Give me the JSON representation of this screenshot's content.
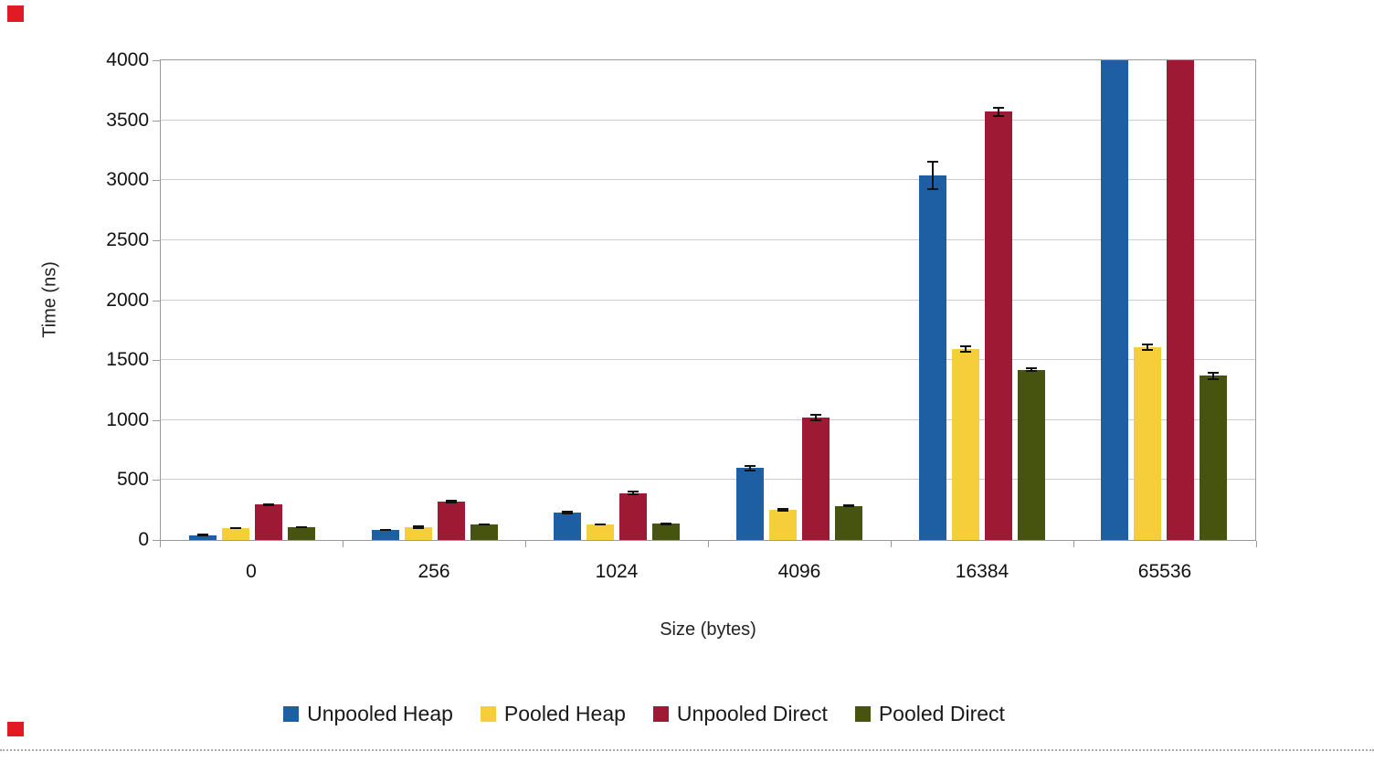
{
  "page": {
    "background": "#ffffff",
    "corner_mark_color": "#e01b24",
    "dotted_line_color": "#ababab"
  },
  "chart_data": {
    "type": "bar",
    "title": "",
    "xlabel": "Size (bytes)",
    "ylabel": "Time (ns)",
    "categories": [
      "0",
      "256",
      "1024",
      "4096",
      "16384",
      "65536"
    ],
    "series": [
      {
        "name": "Unpooled Heap",
        "color": "#1e5fa4",
        "values": [
          40,
          85,
          230,
          600,
          3040,
          4000
        ],
        "errors": [
          10,
          10,
          15,
          25,
          120,
          0
        ]
      },
      {
        "name": "Pooled Heap",
        "color": "#f6ce3c",
        "values": [
          100,
          110,
          130,
          255,
          1590,
          1610
        ],
        "errors": [
          10,
          15,
          10,
          15,
          30,
          30
        ]
      },
      {
        "name": "Unpooled Direct",
        "color": "#9e1a34",
        "values": [
          295,
          320,
          390,
          1020,
          3570,
          4000
        ],
        "errors": [
          10,
          12,
          20,
          30,
          45,
          0
        ]
      },
      {
        "name": "Pooled Direct",
        "color": "#465410",
        "values": [
          110,
          130,
          135,
          285,
          1420,
          1370
        ],
        "errors": [
          8,
          8,
          10,
          10,
          20,
          35
        ]
      }
    ],
    "ylim": [
      0,
      4000
    ],
    "ytick_step": 500,
    "yticks": [
      0,
      500,
      1000,
      1500,
      2000,
      2500,
      3000,
      3500,
      4000
    ],
    "grid": true,
    "error_bars": true,
    "legend_position": "bottom",
    "bars_clipped_at_ymax": [
      {
        "series": "Unpooled Heap",
        "category": "65536"
      },
      {
        "series": "Unpooled Direct",
        "category": "65536"
      }
    ]
  }
}
